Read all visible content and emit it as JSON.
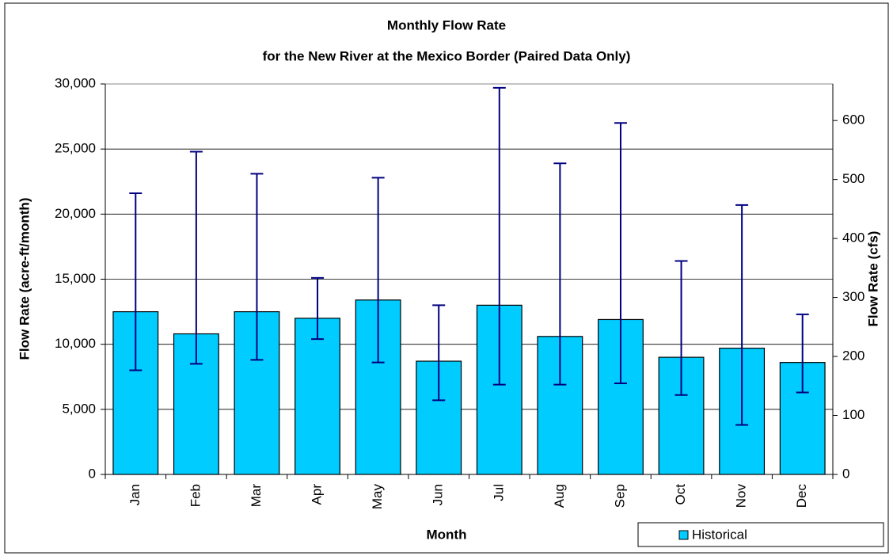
{
  "chart_data": {
    "type": "bar",
    "title": "Monthly Flow Rate",
    "subtitle": "for the New River at the Mexico Border (Paired Data Only)",
    "x_label": "Month",
    "y_label": "Flow Rate (acre-ft/month)",
    "y2_label": "Flow Rate (cfs)",
    "categories": [
      "Jan",
      "Feb",
      "Mar",
      "Apr",
      "May",
      "Jun",
      "Jul",
      "Aug",
      "Sep",
      "Oct",
      "Nov",
      "Dec"
    ],
    "series": [
      {
        "name": "Historical",
        "color": "#00ccff",
        "values": [
          12500,
          10800,
          12500,
          12000,
          13400,
          8700,
          13000,
          10600,
          11900,
          9000,
          9700,
          8600
        ],
        "low": [
          8000,
          8500,
          8800,
          10400,
          8600,
          5700,
          6900,
          6900,
          7000,
          6100,
          3800,
          6300
        ],
        "high": [
          21600,
          24800,
          23100,
          15100,
          22800,
          13000,
          29700,
          23900,
          27000,
          16400,
          20700,
          12300
        ],
        "error_color": "#000080"
      }
    ],
    "ylim": [
      0,
      30000
    ],
    "yticks": [
      {
        "value": 0,
        "label": "0"
      },
      {
        "value": 5000,
        "label": "5,000"
      },
      {
        "value": 10000,
        "label": "10,000"
      },
      {
        "value": 15000,
        "label": "15,000"
      },
      {
        "value": 20000,
        "label": "20,000"
      },
      {
        "value": 25000,
        "label": "25,000"
      },
      {
        "value": 30000,
        "label": "30,000"
      }
    ],
    "y2lim": [
      0,
      662
    ],
    "y2ticks": [
      0,
      100,
      200,
      300,
      400,
      500,
      600
    ],
    "grid": true,
    "legend": "bottom-right"
  }
}
